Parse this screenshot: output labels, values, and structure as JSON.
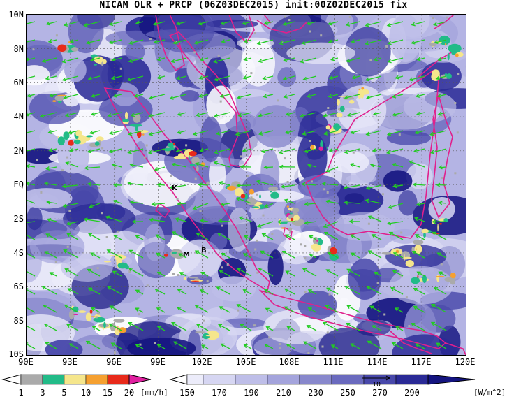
{
  "title": "NICAM OLR + PRCP (06Z03DEC2015) init:00Z02DEC2015 fix",
  "map": {
    "lon_range": [
      90,
      120
    ],
    "lat_range": [
      -10,
      10
    ],
    "lat_labels": [
      "10N",
      "8N",
      "6N",
      "4N",
      "2N",
      "EQ",
      "2S",
      "4S",
      "6S",
      "8S",
      "10S"
    ],
    "lon_labels": [
      "90E",
      "93E",
      "96E",
      "99E",
      "102E",
      "105E",
      "108E",
      "111E",
      "114E",
      "117E",
      "120E"
    ],
    "coastline_color": "#e0208c",
    "wind_vector_color": "#22cc22",
    "site_markers": [
      {
        "label": "K",
        "lon": 101.0,
        "lat": -0.3
      },
      {
        "label": "M",
        "lon": 100.3,
        "lat": -4.1
      },
      {
        "label": "B",
        "lon": 102.2,
        "lat": -3.8
      }
    ]
  },
  "precip_colorbar": {
    "labels": [
      "1",
      "3",
      "5",
      "10",
      "15",
      "20"
    ],
    "colors": [
      "#aaaaaa",
      "#22bb88",
      "#f5e68c",
      "#f5a030",
      "#e82a1a",
      "#e020a0"
    ],
    "unit": "[mm/h]"
  },
  "olr_colorbar": {
    "labels": [
      "150",
      "170",
      "190",
      "210",
      "230",
      "250",
      "270",
      "290"
    ],
    "colors": [
      "#ffffff",
      "#ececfa",
      "#d6d6f2",
      "#bebee8",
      "#a4a4dc",
      "#8888cc",
      "#6a6abe",
      "#4848aa",
      "#2a2a96",
      "#141480"
    ],
    "unit": "[W/m^2]",
    "reference_vector_label": "10"
  }
}
